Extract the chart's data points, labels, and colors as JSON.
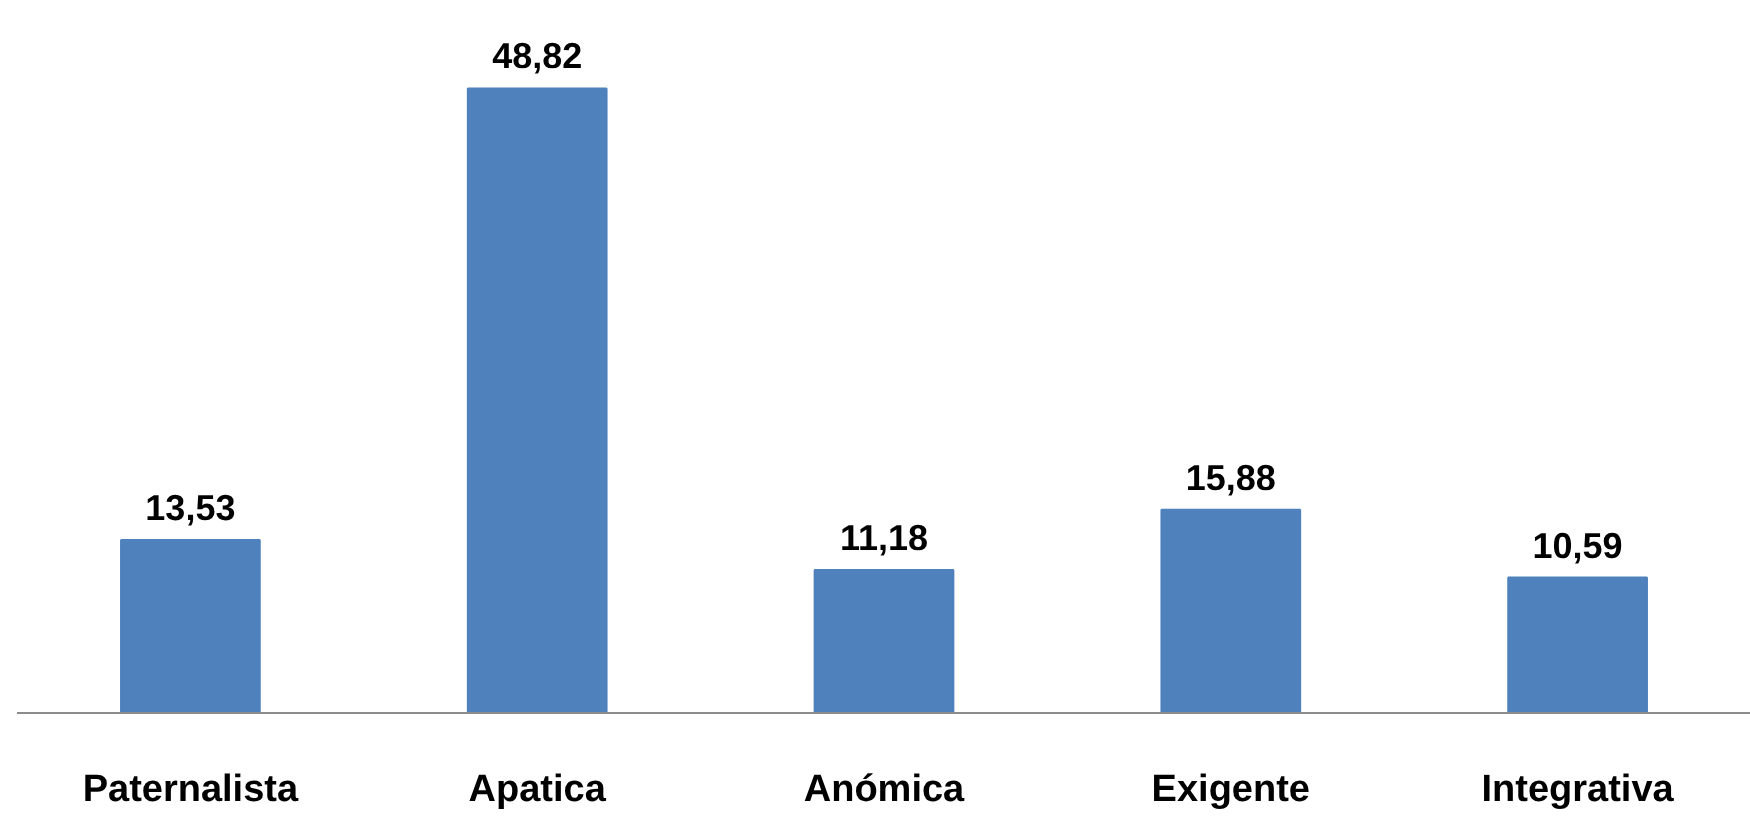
{
  "chart_data": {
    "type": "bar",
    "categories": [
      "Paternalista",
      "Apatica",
      "Anómica",
      "Exigente",
      "Integrativa"
    ],
    "values": [
      13.53,
      48.82,
      11.18,
      15.88,
      10.59
    ],
    "value_labels": [
      "13,53",
      "48,82",
      "11,18",
      "15,88",
      "10,59"
    ],
    "color": "#4f81bd",
    "grid": false
  }
}
